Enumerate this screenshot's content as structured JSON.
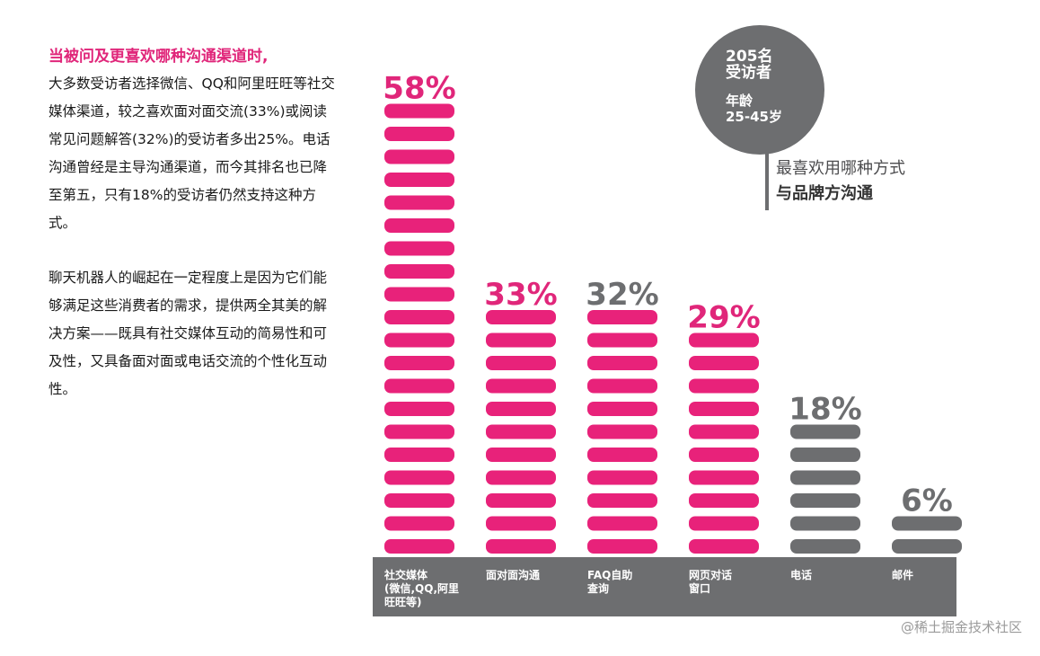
{
  "left": {
    "headline": "当被问及更喜欢哪种沟通渠道时,",
    "para1": "大多数受访者选择微信、QQ和阿里旺旺等社交媒体渠道，较之喜欢面对面交流(33%)或阅读常见问题解答(32%)的受访者多出25%。电话沟通曾经是主导沟通渠道，而今其排名也已降至第五，只有18%的受访者仍然支持这种方式。",
    "para2": "聊天机器人的崛起在一定程度上是因为它们能够满足这些消费者的需求，提供两全其美的解决方案——既具有社交媒体互动的简易性和可及性，又具备面对面或电话交流的个性化互动性。"
  },
  "badge": {
    "line1": "205名",
    "line2": "受访者",
    "line3": "年龄",
    "line4": "25-45岁"
  },
  "caption": {
    "line1": "最喜欢用哪种方式",
    "line2": "与品牌方沟通"
  },
  "watermark": "@稀土掘金技术社区",
  "chart_data": {
    "type": "bar",
    "categories": [
      [
        "社交媒体",
        "(微信,QQ,阿里",
        "旺旺等)"
      ],
      [
        "面对面沟通"
      ],
      [
        "FAQ自助",
        "查询"
      ],
      [
        "网页对话",
        "窗口"
      ],
      [
        "电话"
      ],
      [
        "邮件"
      ]
    ],
    "values": [
      58,
      33,
      32,
      29,
      18,
      6
    ],
    "value_labels": [
      "58%",
      "33%",
      "32%",
      "29%",
      "18%",
      "6%"
    ],
    "bar_colors": [
      "#e8227a",
      "#e8227a",
      "#e8227a",
      "#e8227a",
      "#6d6e70",
      "#6d6e70"
    ],
    "label_colors": [
      "#e0267a",
      "#e0267a",
      "#6d6e70",
      "#e0267a",
      "#6d6e70",
      "#6d6e70"
    ],
    "axis_bar_color": "#6d6e70",
    "ylim": [
      0,
      58
    ]
  }
}
